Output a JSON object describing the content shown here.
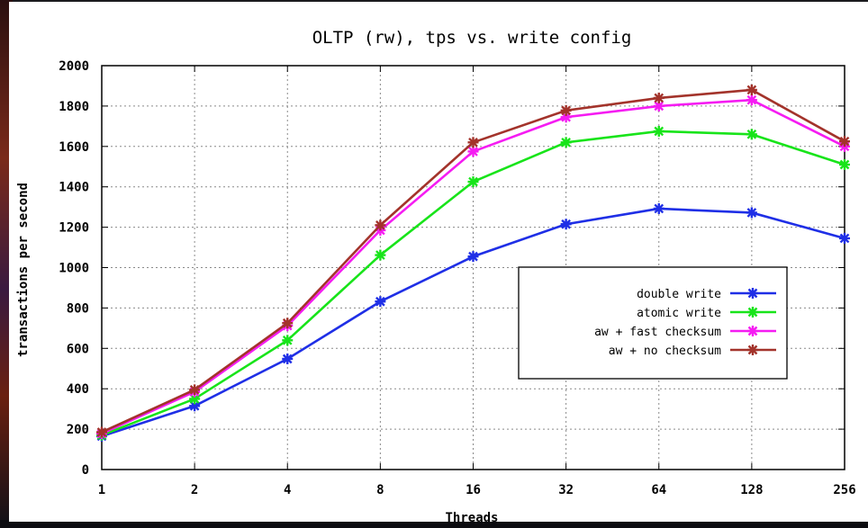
{
  "chart_data": {
    "type": "line",
    "title": "OLTP (rw), tps vs. write config",
    "xlabel": "Threads",
    "ylabel": "transactions per second",
    "categories": [
      "1",
      "2",
      "4",
      "8",
      "16",
      "32",
      "64",
      "128",
      "256"
    ],
    "x_scale": "log2",
    "ylim": [
      0,
      2000
    ],
    "yticks": [
      "0",
      "200",
      "400",
      "600",
      "800",
      "1000",
      "1200",
      "1400",
      "1600",
      "1800",
      "2000"
    ],
    "grid": true,
    "legend_position": "right",
    "series": [
      {
        "name": "double write",
        "color": "#1f2fe6",
        "values": [
          165,
          315,
          548,
          832,
          1055,
          1215,
          1292,
          1272,
          1145
        ]
      },
      {
        "name": "atomic write",
        "color": "#18e41a",
        "values": [
          170,
          350,
          640,
          1062,
          1425,
          1620,
          1675,
          1660,
          1510
        ]
      },
      {
        "name": "aw + fast checksum",
        "color": "#f51cf2",
        "values": [
          178,
          385,
          712,
          1185,
          1575,
          1745,
          1800,
          1830,
          1600
        ]
      },
      {
        "name": "aw + no checksum",
        "color": "#a3332b",
        "values": [
          185,
          395,
          725,
          1210,
          1620,
          1778,
          1840,
          1880,
          1625
        ]
      }
    ]
  }
}
